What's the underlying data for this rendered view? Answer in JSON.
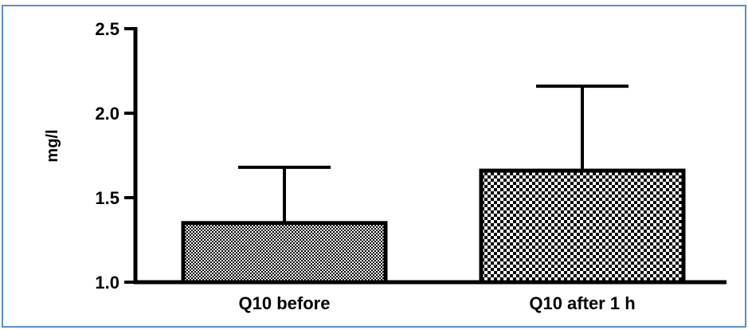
{
  "chart_data": {
    "type": "bar",
    "categories": [
      "Q10 before",
      "Q10 after 1 h"
    ],
    "values": [
      1.35,
      1.66
    ],
    "error_upper": [
      1.68,
      2.16
    ],
    "ylabel": "mg/l",
    "xlabel": "",
    "ylim": [
      1.0,
      2.5
    ],
    "yticks": [
      "1.0",
      "1.5",
      "2.0",
      "2.5"
    ],
    "ytick_values": [
      1.0,
      1.5,
      2.0,
      2.5
    ],
    "grid": false,
    "bar_patterns": [
      "fine-checker",
      "coarse-checker"
    ],
    "colors": {
      "bar_fill": "#ffffff",
      "bar_pattern": "#000000",
      "frame_border": "#5b8ec9"
    }
  }
}
